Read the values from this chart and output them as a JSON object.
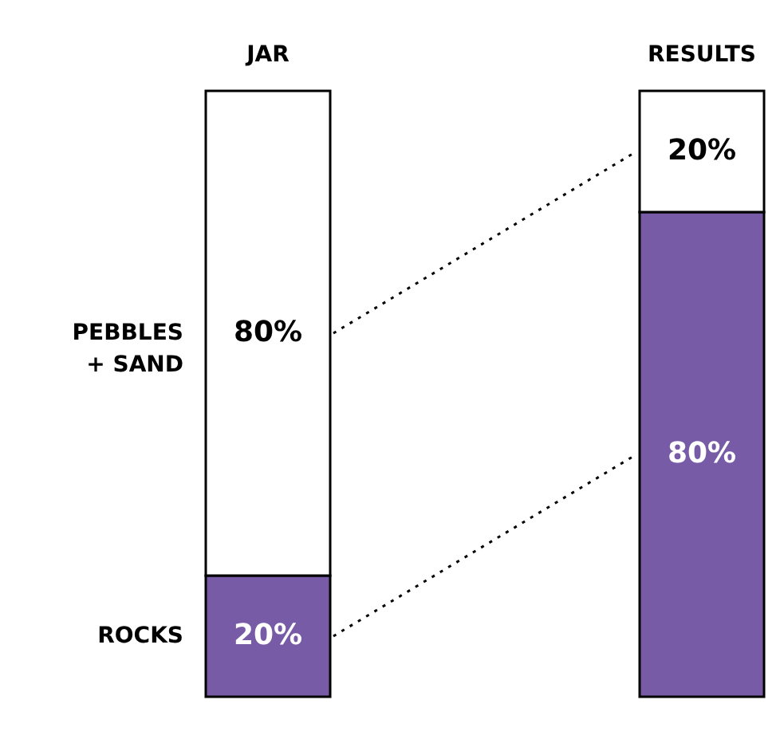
{
  "chart_data": {
    "type": "bar",
    "stacked": true,
    "categories": [
      "JAR",
      "RESULTS"
    ],
    "series": [
      {
        "name": "ROCKS",
        "color": "#775ba6",
        "values": [
          20,
          80
        ],
        "value_labels": [
          "20%",
          "80%"
        ]
      },
      {
        "name": "PEBBLES + SAND",
        "color": "#ffffff",
        "values": [
          80,
          20
        ],
        "value_labels": [
          "80%",
          "20%"
        ]
      }
    ],
    "ylim": [
      0,
      100
    ],
    "tick_labels": "x"
  }
}
